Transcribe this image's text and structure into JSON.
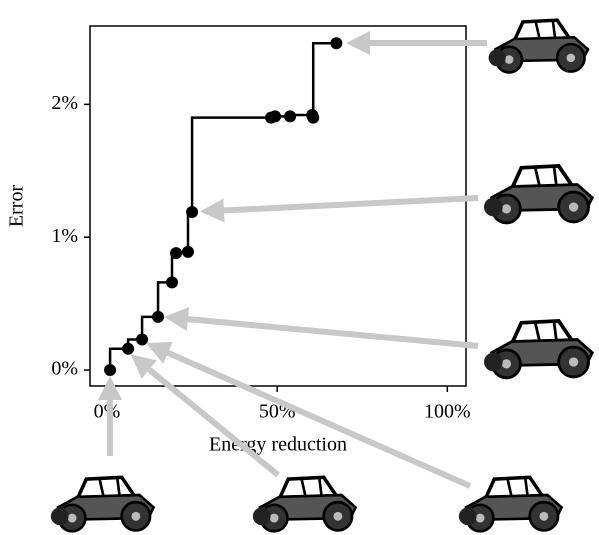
{
  "chart_data": {
    "type": "line",
    "step": "vertical-first",
    "color": "#000000",
    "xlabel": "Energy reduction",
    "ylabel": "Error",
    "x": [
      0.9,
      6.2,
      10.3,
      15,
      19.1,
      20.3,
      23.8,
      25,
      48.2,
      49.4,
      53.8,
      60.3,
      60.6,
      67.4
    ],
    "values": [
      0,
      0.16,
      0.23,
      0.4,
      0.66,
      0.88,
      0.89,
      1.19,
      1.9,
      1.91,
      1.91,
      1.92,
      1.9,
      2.46
    ],
    "xlim": [
      -5,
      105.5
    ],
    "ylim": [
      -0.12,
      2.59
    ],
    "xticks": [
      {
        "value": 0,
        "label": "0%"
      },
      {
        "value": 50,
        "label": "50%"
      },
      {
        "value": 100,
        "label": "100%"
      }
    ],
    "yticks": [
      {
        "value": 0,
        "label": "0%"
      },
      {
        "value": 1,
        "label": "1%"
      },
      {
        "value": 2,
        "label": "2%"
      }
    ]
  }
}
